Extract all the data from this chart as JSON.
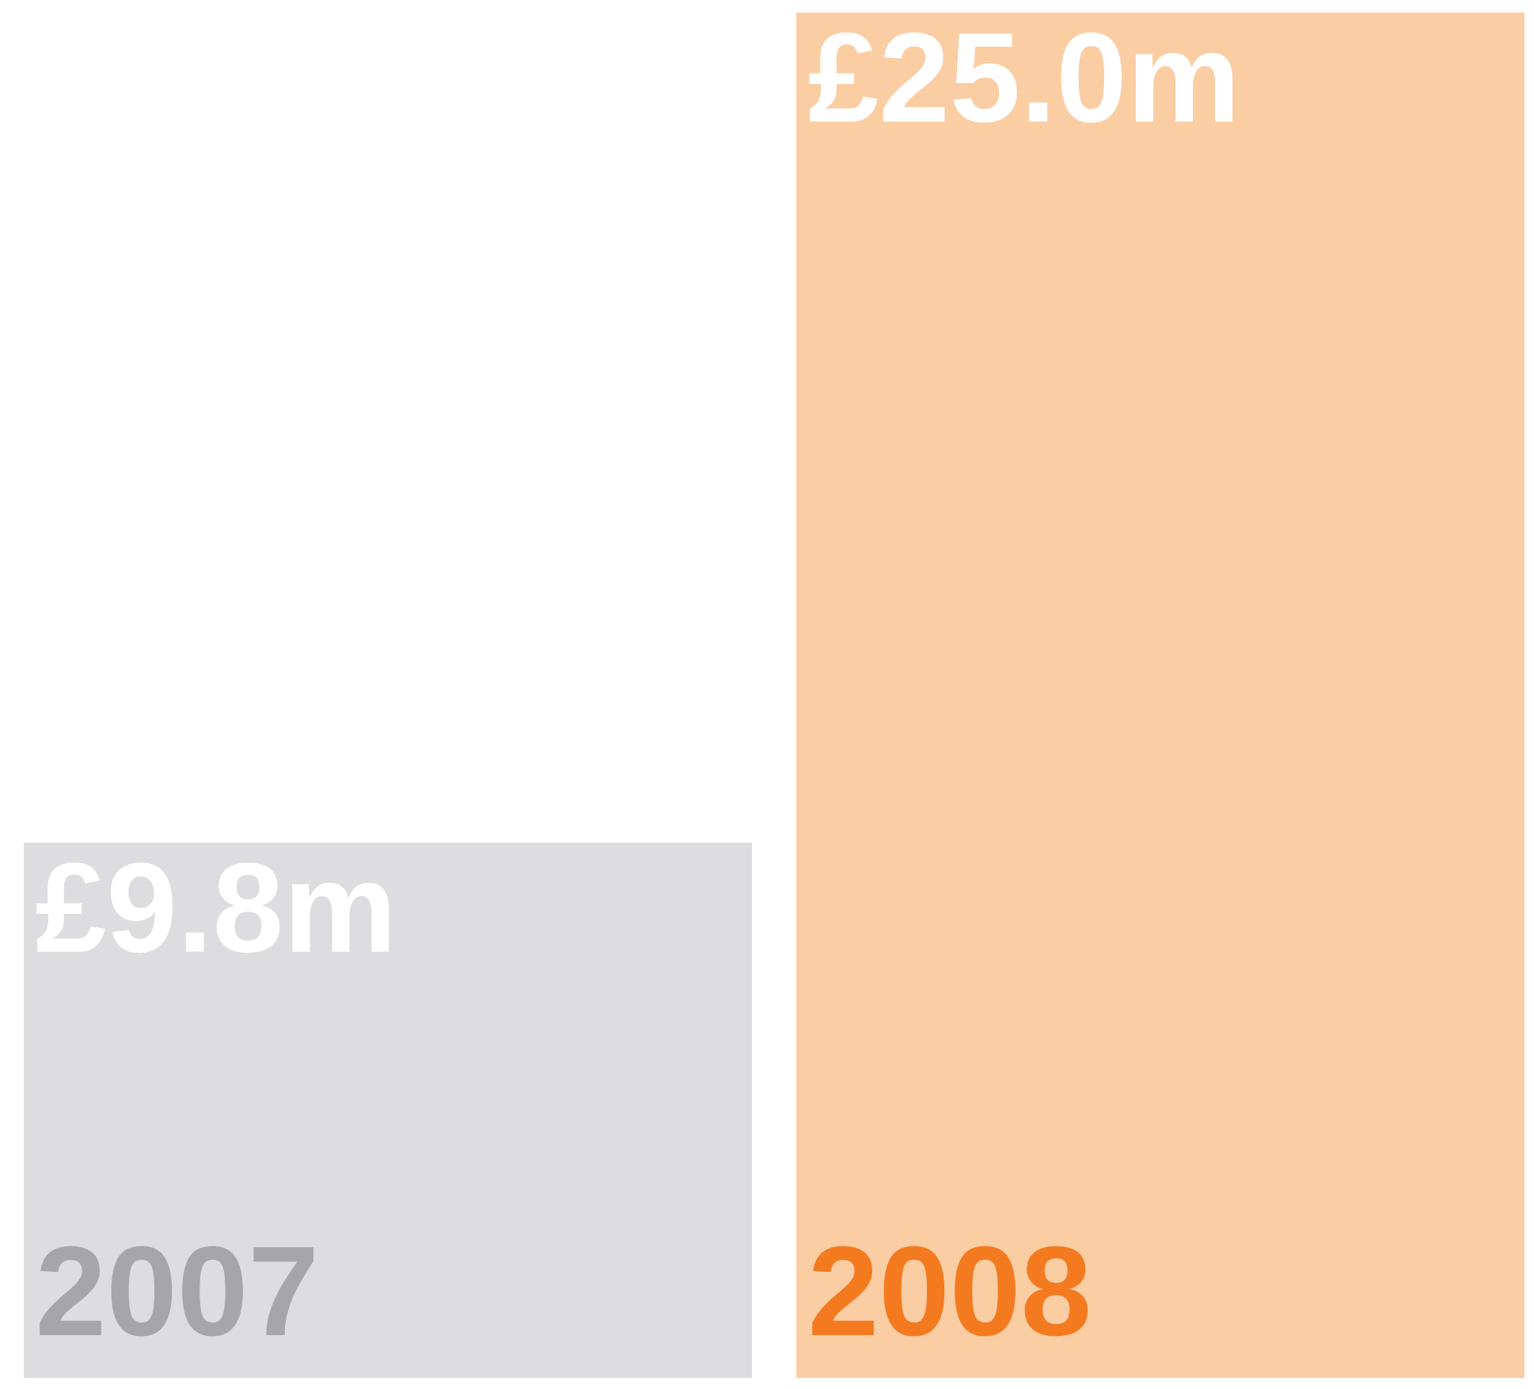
{
  "chart_data": {
    "type": "bar",
    "categories": [
      "2007",
      "2008"
    ],
    "values": [
      9.8,
      25.0
    ],
    "colors": [
      "#dddddf",
      "#fbcda3"
    ],
    "value_labels": [
      "£9.8m",
      "£25.0m"
    ]
  }
}
